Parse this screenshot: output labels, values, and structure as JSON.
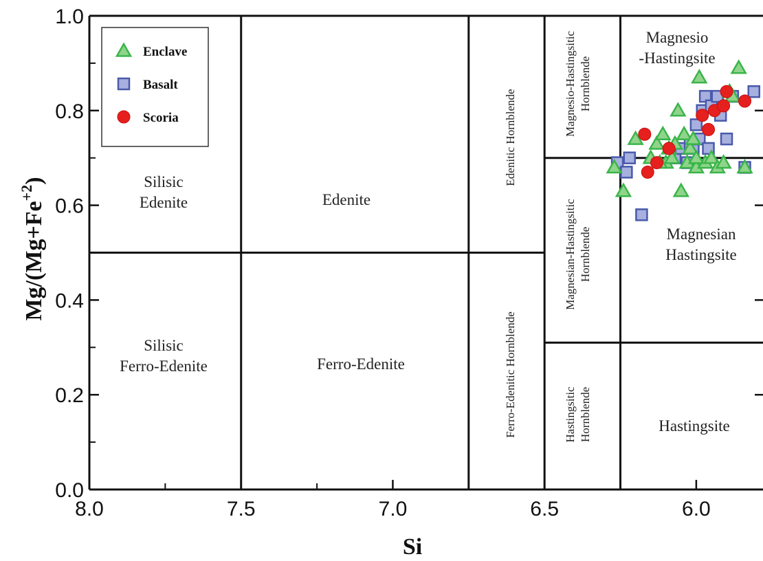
{
  "chart_data": {
    "type": "scatter",
    "xlabel": "Si",
    "ylabel": "Mg/(Mg+Fe+2)",
    "ylabel_parts": {
      "main": "Mg/(Mg+Fe",
      "sup": "+2",
      "close": ")"
    },
    "xlim": [
      8.0,
      5.78
    ],
    "ylim": [
      0.0,
      1.0
    ],
    "x_reversed": true,
    "x_ticks": [
      "8.0",
      "7.5",
      "7.0",
      "6.5",
      "6.0"
    ],
    "y_ticks": [
      "0.0",
      "0.2",
      "0.4",
      "0.6",
      "0.8",
      "1.0"
    ],
    "legend_position": "top-left",
    "grid": false,
    "fields": [
      {
        "name": "Silisic Edenite",
        "lines": [
          "Silisic",
          "Edenite"
        ]
      },
      {
        "name": "Edenite",
        "lines": [
          "Edenite"
        ]
      },
      {
        "name": "Edenitic Hornblende",
        "lines": [
          "Edenitic Hornblende"
        ]
      },
      {
        "name": "Magnesio-Hastingsitic Hornblende",
        "lines": [
          "Magnesio-Hastingsitic",
          "Hornblende"
        ]
      },
      {
        "name": "Magnesio-Hastingsite",
        "lines": [
          "Magnesio",
          "-Hastingsite"
        ]
      },
      {
        "name": "Silisic Ferro-Edenite",
        "lines": [
          "Silisic",
          "Ferro-Edenite"
        ]
      },
      {
        "name": "Ferro-Edenite",
        "lines": [
          "Ferro-Edenite"
        ]
      },
      {
        "name": "Ferro-Edenitic Hornblende",
        "lines": [
          "Ferro-Edenitic Hornblende"
        ]
      },
      {
        "name": "Magnesian-Hastingsitic Hornblende",
        "lines": [
          "Magnesian-Hastingsitic",
          "Hornblende"
        ]
      },
      {
        "name": "Magnesian Hastingsite",
        "lines": [
          "Magnesian",
          "Hastingsite"
        ]
      },
      {
        "name": "Hastingsitic Hornblende",
        "lines": [
          "Hastingsitic",
          "Hornblende"
        ]
      },
      {
        "name": "Hastingsite",
        "lines": [
          "Hastingsite"
        ]
      }
    ],
    "boundaries": {
      "vertical_si": [
        7.5,
        6.75,
        6.5,
        6.25
      ],
      "horizontal_segments": [
        {
          "y": 0.5,
          "x_from": 8.0,
          "x_to": 6.5
        },
        {
          "y": 0.7,
          "x_from": 6.5,
          "x_to": 5.78
        },
        {
          "y": 0.31,
          "x_from": 6.5,
          "x_to": 5.78
        }
      ]
    },
    "series": [
      {
        "name": "Enclave",
        "marker": "triangle",
        "color": "#3ab54a",
        "points": [
          [
            6.24,
            0.63
          ],
          [
            6.2,
            0.74
          ],
          [
            6.15,
            0.7
          ],
          [
            6.13,
            0.73
          ],
          [
            6.11,
            0.75
          ],
          [
            6.1,
            0.69
          ],
          [
            6.09,
            0.72
          ],
          [
            6.08,
            0.7
          ],
          [
            6.07,
            0.73
          ],
          [
            6.06,
            0.8
          ],
          [
            6.05,
            0.63
          ],
          [
            6.04,
            0.75
          ],
          [
            6.03,
            0.69
          ],
          [
            6.02,
            0.72
          ],
          [
            6.01,
            0.74
          ],
          [
            6.0,
            0.68
          ],
          [
            5.99,
            0.87
          ],
          [
            5.97,
            0.69
          ],
          [
            5.95,
            0.7
          ],
          [
            5.93,
            0.68
          ],
          [
            5.91,
            0.69
          ],
          [
            5.89,
            0.84
          ],
          [
            5.88,
            0.83
          ],
          [
            5.86,
            0.89
          ],
          [
            5.84,
            0.68
          ],
          [
            6.27,
            0.68
          ],
          [
            6.12,
            0.69
          ],
          [
            6.0,
            0.7
          ]
        ]
      },
      {
        "name": "Basalt",
        "marker": "square",
        "color": "#4a5aab",
        "points": [
          [
            6.26,
            0.69
          ],
          [
            6.23,
            0.67
          ],
          [
            6.22,
            0.7
          ],
          [
            6.18,
            0.58
          ],
          [
            6.07,
            0.7
          ],
          [
            6.05,
            0.72
          ],
          [
            6.03,
            0.69
          ],
          [
            6.02,
            0.73
          ],
          [
            6.01,
            0.72
          ],
          [
            6.0,
            0.77
          ],
          [
            5.99,
            0.74
          ],
          [
            5.98,
            0.8
          ],
          [
            5.97,
            0.83
          ],
          [
            5.96,
            0.72
          ],
          [
            5.95,
            0.81
          ],
          [
            5.93,
            0.83
          ],
          [
            5.92,
            0.79
          ],
          [
            5.9,
            0.74
          ],
          [
            5.88,
            0.83
          ],
          [
            5.84,
            0.68
          ],
          [
            5.81,
            0.84
          ]
        ]
      },
      {
        "name": "Scoria",
        "marker": "circle",
        "color": "#e5201e",
        "points": [
          [
            6.17,
            0.75
          ],
          [
            6.16,
            0.67
          ],
          [
            6.13,
            0.69
          ],
          [
            6.09,
            0.72
          ],
          [
            5.98,
            0.79
          ],
          [
            5.96,
            0.76
          ],
          [
            5.94,
            0.8
          ],
          [
            5.91,
            0.81
          ],
          [
            5.9,
            0.84
          ],
          [
            5.84,
            0.82
          ]
        ]
      }
    ]
  }
}
